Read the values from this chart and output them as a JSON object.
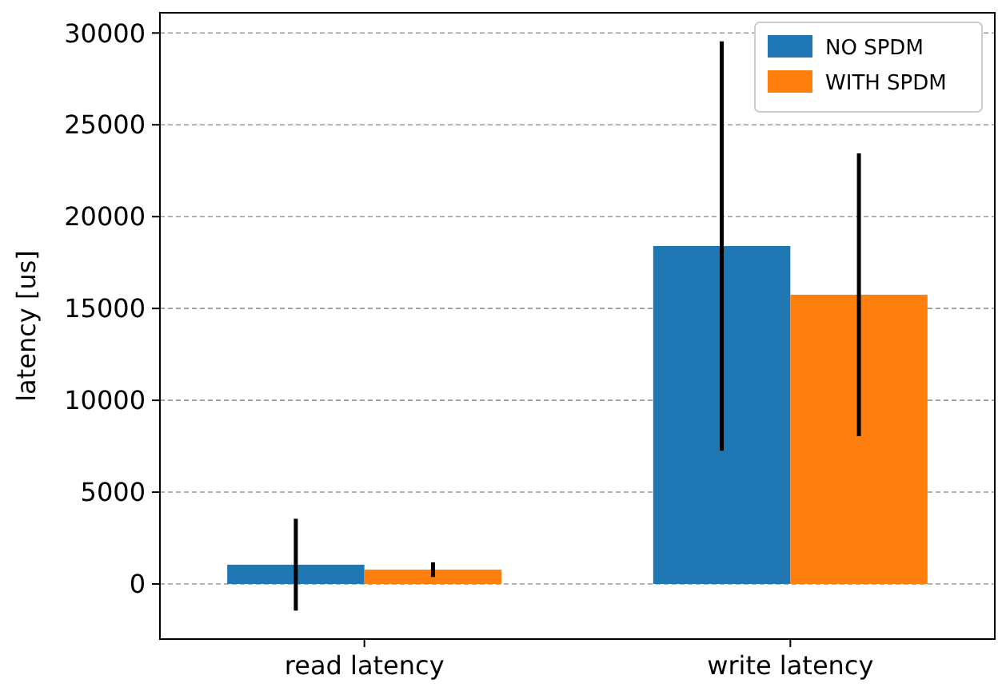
{
  "chart_data": {
    "type": "bar",
    "ylabel": "latency [us]",
    "categories": [
      "read latency",
      "write latency"
    ],
    "series": [
      {
        "name": "NO SPDM",
        "color": "#1f77b4",
        "values": [
          1050,
          18400
        ],
        "errors": [
          2500,
          11150
        ]
      },
      {
        "name": "WITH SPDM",
        "color": "#ff7f0e",
        "values": [
          780,
          15750
        ],
        "errors": [
          400,
          7700
        ]
      }
    ],
    "ylim": [
      -3000,
      31100
    ],
    "yticks": [
      0,
      5000,
      10000,
      15000,
      20000,
      25000,
      30000
    ],
    "grid": "y",
    "legend": "top right"
  }
}
